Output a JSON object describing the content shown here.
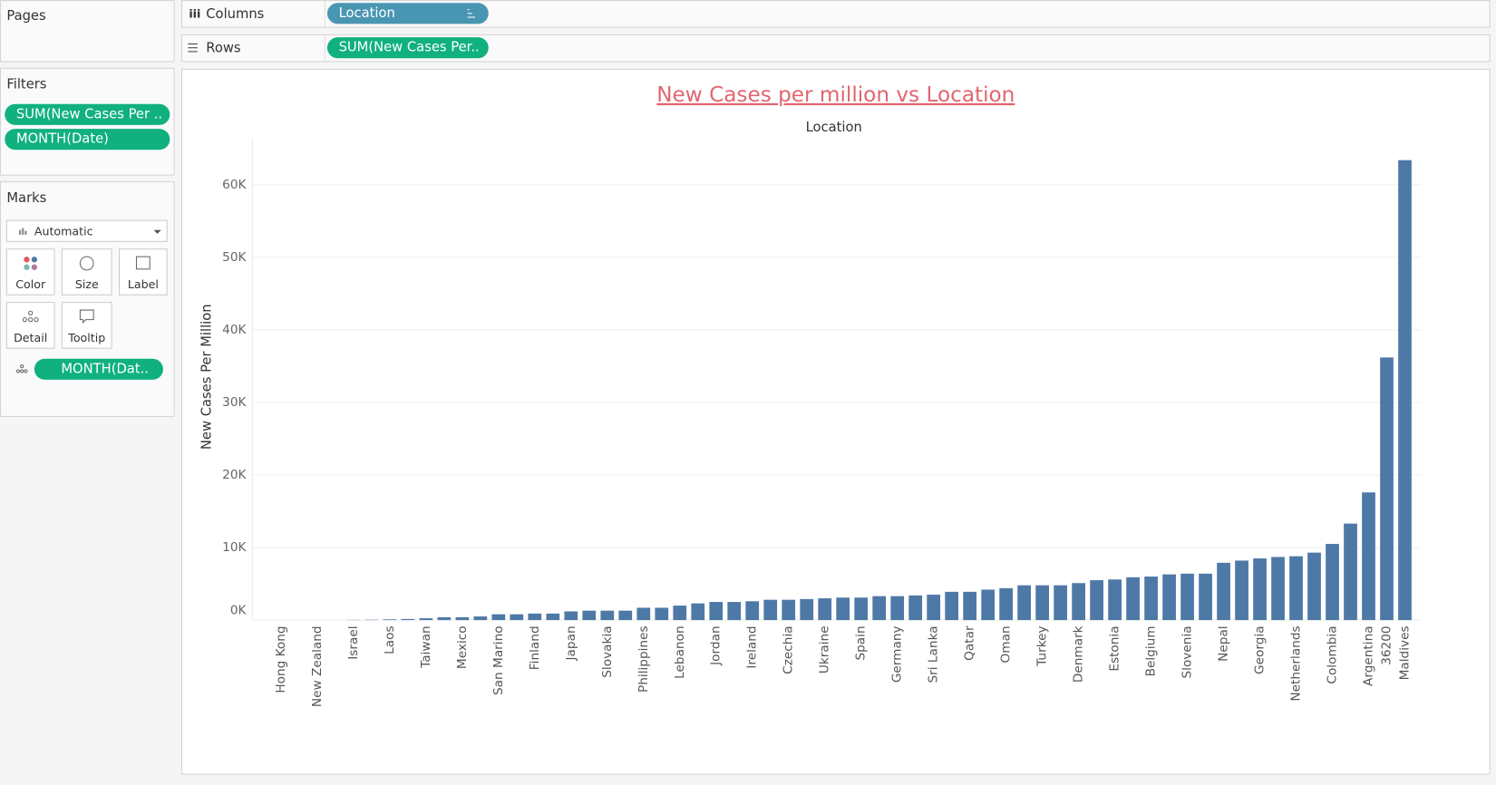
{
  "pages_shelf": {
    "title": "Pages"
  },
  "columns_shelf": {
    "title": "Columns",
    "pill": "Location"
  },
  "rows_shelf": {
    "title": "Rows",
    "pill": "SUM(New Cases Per.."
  },
  "filters_card": {
    "title": "Filters",
    "pills": [
      "SUM(New Cases Per ..",
      "MONTH(Date)"
    ]
  },
  "marks_card": {
    "title": "Marks",
    "mark_type": "Automatic",
    "buttons": [
      "Color",
      "Size",
      "Label",
      "Detail",
      "Tooltip"
    ],
    "pill": "MONTH(Dat.."
  },
  "chart_data": {
    "type": "bar",
    "title": "New Cases per million vs Location",
    "x_label": "Location",
    "y_label": "New Cases Per Million",
    "color": "#4e79a7",
    "grid": true,
    "categories": [
      "Hong Kong",
      null,
      "New Zealand",
      null,
      "Israel",
      null,
      "Laos",
      null,
      "Taiwan",
      null,
      "Mexico",
      null,
      "San Marino",
      null,
      "Finland",
      null,
      "Japan",
      null,
      "Slovakia",
      null,
      "Philippines",
      null,
      "Lebanon",
      null,
      "Jordan",
      null,
      "Ireland",
      null,
      "Czechia",
      null,
      "Ukraine",
      null,
      "Spain",
      null,
      "Germany",
      null,
      "Sri Lanka",
      null,
      "Qatar",
      null,
      "Oman",
      null,
      "Turkey",
      null,
      "Denmark",
      null,
      "Estonia",
      null,
      "Belgium",
      null,
      "Slovenia",
      null,
      "Nepal",
      null,
      "Georgia",
      null,
      "Netherlands",
      null,
      "Colombia",
      null,
      "Argentina",
      36200,
      "Maldives"
    ],
    "values": [
      0,
      0,
      0,
      0,
      30,
      50,
      100,
      150,
      250,
      400,
      400,
      500,
      800,
      800,
      900,
      900,
      1200,
      1300,
      1300,
      1300,
      1700,
      1700,
      2000,
      2300,
      2500,
      2500,
      2600,
      2800,
      2800,
      2900,
      3000,
      3100,
      3100,
      3300,
      3300,
      3400,
      3500,
      3900,
      3900,
      4200,
      4400,
      4800,
      4800,
      4800,
      5100,
      5500,
      5600,
      5900,
      6000,
      6300,
      6400,
      6400,
      7900,
      8200,
      8500,
      8700,
      8800,
      9300,
      10500,
      13300,
      17600,
      36200,
      63400
    ],
    "ylim": [
      0,
      66400
    ],
    "yticks": [
      {
        "value": 0,
        "label": "0K"
      },
      {
        "value": 10000,
        "label": "10K"
      },
      {
        "value": 20000,
        "label": "20K"
      },
      {
        "value": 30000,
        "label": "30K"
      },
      {
        "value": 40000,
        "label": "40K"
      },
      {
        "value": 50000,
        "label": "50K"
      },
      {
        "value": 60000,
        "label": "60K"
      }
    ]
  }
}
